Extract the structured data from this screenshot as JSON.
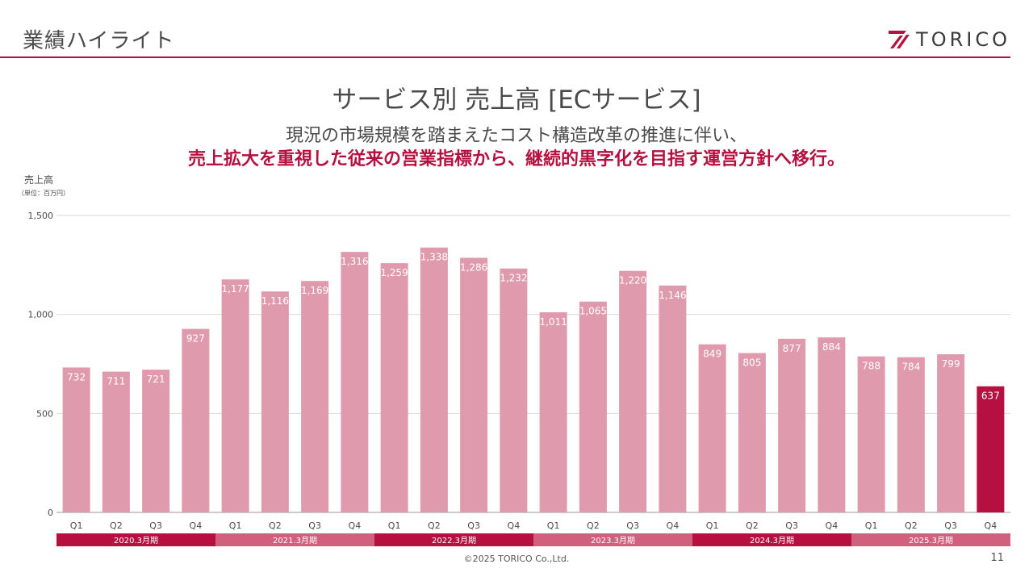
{
  "header": {
    "title": "業績ハイライト",
    "logo_text": "TORICO"
  },
  "slide": {
    "title": "サービス別 売上高 [ECサービス]",
    "message_line1": "現況の市場規模を踏まえたコスト構造改革の推進に伴い、",
    "message_line2": "売上拡大を重視した従来の営業指標から、継続的黒字化を目指す運営方針へ移行。"
  },
  "footer": {
    "copyright": "©2025 TORICO Co.,Ltd.",
    "page_number": "11"
  },
  "colors": {
    "accent": "#b5103f",
    "bar": "#e09aae",
    "text": "#4a4a4a",
    "period_alt": "#d1607e"
  },
  "chart_data": {
    "type": "bar",
    "ylabel": "売上高",
    "unit": "（単位：百万円）",
    "ylim": [
      0,
      1500
    ],
    "yticks": [
      0,
      500,
      1000,
      1500
    ],
    "ytick_labels": [
      "0",
      "500",
      "1,000",
      "1,500"
    ],
    "grid": true,
    "categories": [
      "Q1",
      "Q2",
      "Q3",
      "Q4",
      "Q1",
      "Q2",
      "Q3",
      "Q4",
      "Q1",
      "Q2",
      "Q3",
      "Q4",
      "Q1",
      "Q2",
      "Q3",
      "Q4",
      "Q1",
      "Q2",
      "Q3",
      "Q4",
      "Q1",
      "Q2",
      "Q3",
      "Q4"
    ],
    "values": [
      732,
      711,
      721,
      927,
      1177,
      1116,
      1169,
      1316,
      1259,
      1338,
      1286,
      1232,
      1011,
      1065,
      1220,
      1146,
      849,
      805,
      877,
      884,
      788,
      784,
      799,
      637
    ],
    "value_labels": [
      "732",
      "711",
      "721",
      "927",
      "1,177",
      "1,116",
      "1,169",
      "1,316",
      "1,259",
      "1,338",
      "1,286",
      "1,232",
      "1,011",
      "1,065",
      "1,220",
      "1,146",
      "849",
      "805",
      "877",
      "884",
      "788",
      "784",
      "799",
      "637"
    ],
    "highlight_index": 23,
    "periods": [
      "2020.3月期",
      "2021.3月期",
      "2022.3月期",
      "2023.3月期",
      "2024.3月期",
      "2025.3月期"
    ]
  }
}
